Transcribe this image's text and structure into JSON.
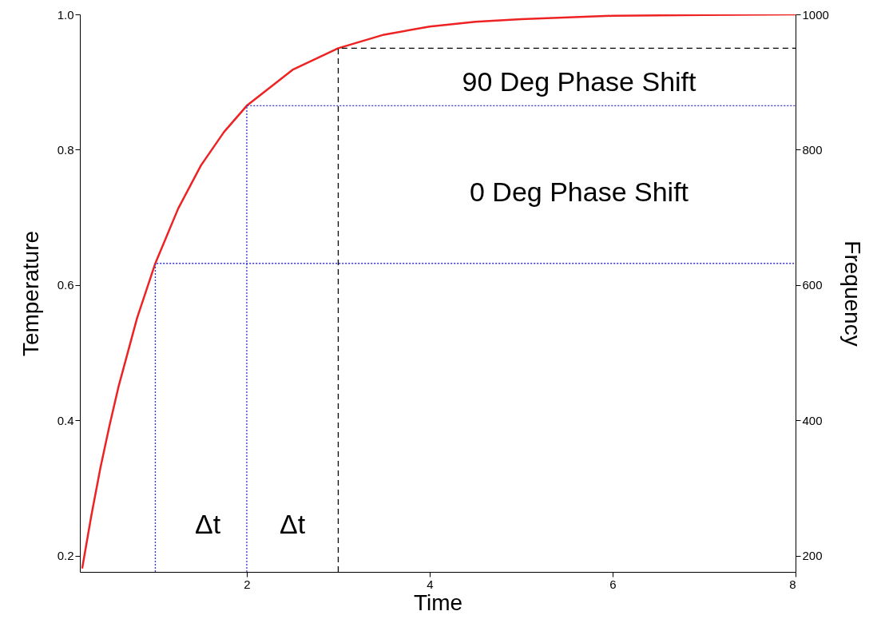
{
  "chart_data": {
    "type": "line",
    "xlabel": "Time",
    "ylabel": "Temperature",
    "y2label": "Frequency",
    "xlim": [
      0.175,
      8
    ],
    "xticks": [
      2,
      4,
      6,
      8
    ],
    "ylim": [
      0.176,
      1.0
    ],
    "yticks": [
      0.2,
      0.4,
      0.6,
      0.8,
      {
        "value": 1,
        "label": "1.0"
      }
    ],
    "y2lim": [
      176,
      1000
    ],
    "y2ticks": [
      200,
      400,
      600,
      800,
      1000
    ],
    "grid": false,
    "series": [
      {
        "color": "#ee2222",
        "line_style": "solid",
        "x": [
          0.2,
          0.3,
          0.4,
          0.5,
          0.6,
          0.8,
          1,
          1.25,
          1.5,
          1.75,
          2,
          2.5,
          3,
          3.5,
          4,
          4.5,
          5,
          6,
          7,
          8
        ],
        "values": [
          0.181,
          0.259,
          0.33,
          0.393,
          0.451,
          0.551,
          0.632,
          0.713,
          0.777,
          0.826,
          0.865,
          0.918,
          0.95,
          0.97,
          0.982,
          0.989,
          0.993,
          0.998,
          0.999,
          1.0
        ]
      },
      {
        "color": "#3333cc",
        "line_style": "dotted",
        "x": [
          1,
          1,
          8
        ],
        "values": [
          0.176,
          0.632,
          0.632
        ]
      },
      {
        "color": "#3333cc",
        "line_style": "dotted",
        "x": [
          2,
          2,
          8
        ],
        "values": [
          0.176,
          0.865,
          0.865
        ]
      },
      {
        "color": "#000000",
        "line_style": "dashed",
        "x": [
          3,
          3,
          8
        ],
        "values": [
          0.176,
          0.95,
          0.95
        ]
      }
    ],
    "annotations": [
      "90 Deg Phase Shift",
      "0 Deg Phase Shift",
      "Δt",
      "Δt"
    ]
  }
}
